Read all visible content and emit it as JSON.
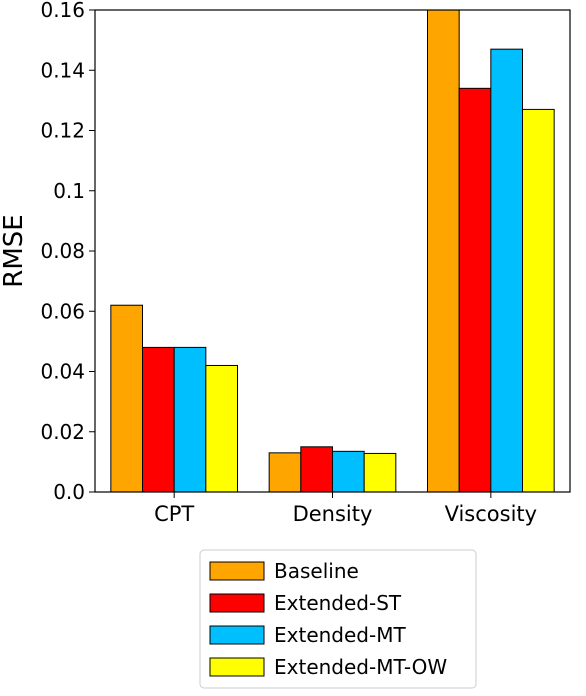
{
  "chart_data": {
    "type": "bar",
    "title": "",
    "xlabel": "",
    "ylabel": "RMSE",
    "categories": [
      "CPT",
      "Density",
      "Viscosity"
    ],
    "series": [
      {
        "name": "Baseline",
        "color": "#FFA500",
        "values": [
          0.062,
          0.013,
          0.16
        ]
      },
      {
        "name": "Extended-ST",
        "color": "#FF0000",
        "values": [
          0.048,
          0.015,
          0.134
        ]
      },
      {
        "name": "Extended-MT",
        "color": "#00BFFF",
        "values": [
          0.048,
          0.0135,
          0.147
        ]
      },
      {
        "name": "Extended-MT-OW",
        "color": "#FFFF00",
        "values": [
          0.042,
          0.0128,
          0.127
        ]
      }
    ],
    "ylim": [
      0,
      0.16
    ],
    "yticks": [
      "0.0",
      "0.02",
      "0.04",
      "0.06",
      "0.08",
      "0.1",
      "0.12",
      "0.14",
      "0.16"
    ],
    "grid": false,
    "legend": {
      "position": "bottom-center"
    }
  }
}
